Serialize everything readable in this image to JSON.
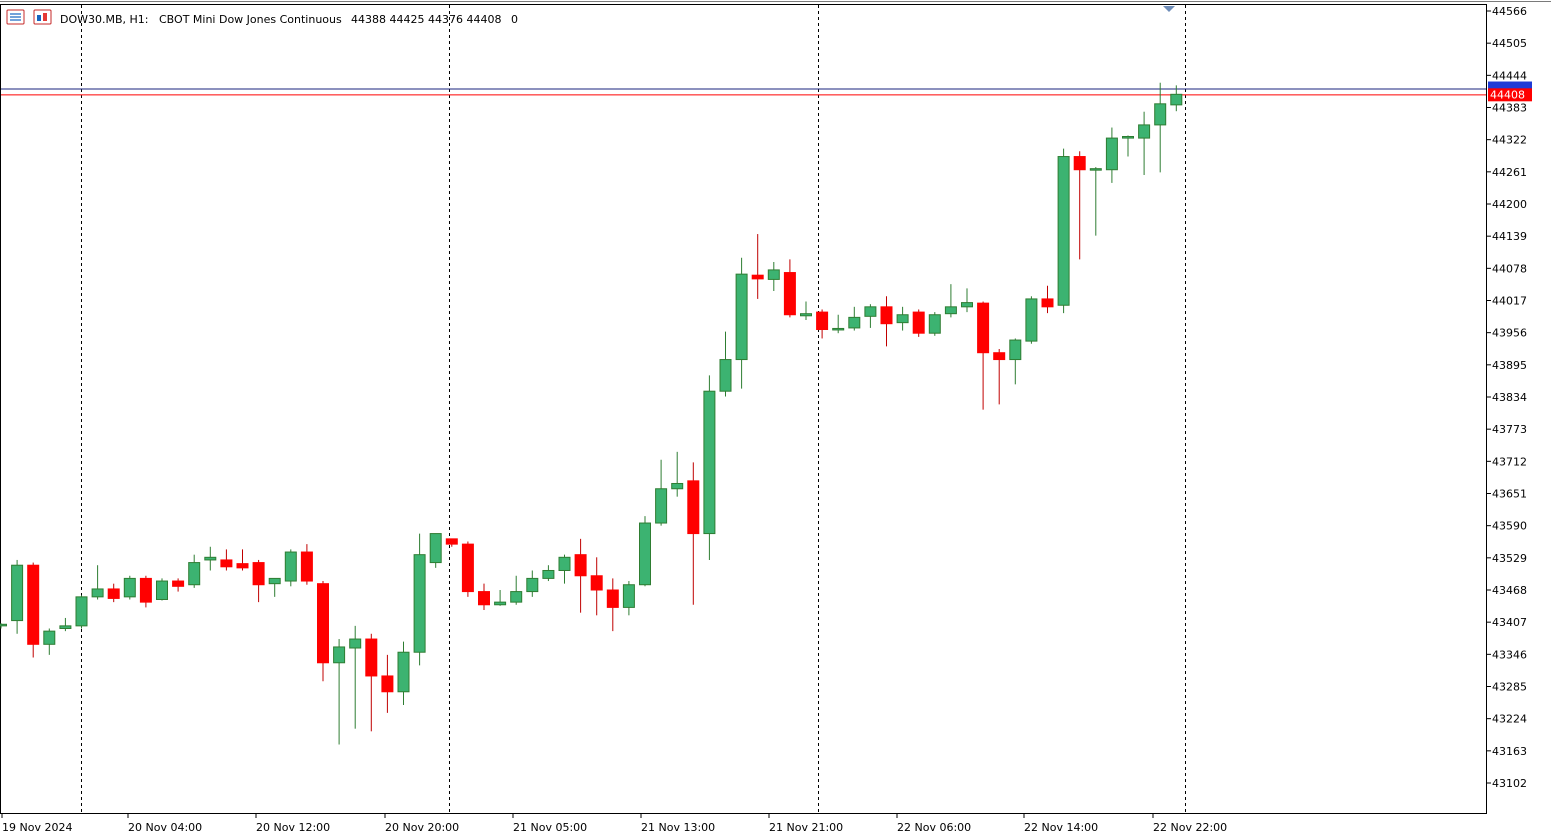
{
  "header": {
    "symbol": "DOW30.MB, H1:",
    "description": "CBOT Mini Dow Jones Continuous",
    "ohlc": "44388 44425 44376 44408",
    "volume": "0",
    "icons": [
      "chart-menu-icon",
      "chart-properties-icon"
    ]
  },
  "colors": {
    "bull": "#3cb371",
    "bull_border": "#2e7d32",
    "bear": "#ff0000",
    "bear_border": "#c00000",
    "grid": "#000000",
    "bid_line": "#ff0000",
    "ask_line": "#1a237e",
    "ask_label": "#1f3bd6"
  },
  "price_labels": {
    "bid": "44408"
  },
  "chart_data": {
    "type": "candlestick",
    "title": "",
    "ylim": [
      43050,
      44575
    ],
    "yticks": [
      "44566",
      "44505",
      "44444",
      "44383",
      "44322",
      "44261",
      "44200",
      "44139",
      "44078",
      "44017",
      "43956",
      "43895",
      "43834",
      "43773",
      "43712",
      "43651",
      "43590",
      "43529",
      "43468",
      "43407",
      "43346",
      "43285",
      "43224",
      "43163",
      "43102"
    ],
    "xticks": [
      "19 Nov 2024",
      "20 Nov 04:00",
      "20 Nov 12:00",
      "20 Nov 20:00",
      "21 Nov 05:00",
      "21 Nov 13:00",
      "21 Nov 21:00",
      "22 Nov 06:00",
      "22 Nov 14:00",
      "22 Nov 22:00"
    ],
    "grid": "vertical dashed separators",
    "bid": 44408,
    "ask": 44419,
    "candles": [
      {
        "o": 43400,
        "h": 43405,
        "l": 43395,
        "c": 43403
      },
      {
        "o": 43410,
        "h": 43525,
        "l": 43385,
        "c": 43515
      },
      {
        "o": 43515,
        "h": 43520,
        "l": 43340,
        "c": 43365
      },
      {
        "o": 43365,
        "h": 43395,
        "l": 43345,
        "c": 43390
      },
      {
        "o": 43395,
        "h": 43415,
        "l": 43390,
        "c": 43400
      },
      {
        "o": 43400,
        "h": 43458,
        "l": 43395,
        "c": 43455
      },
      {
        "o": 43455,
        "h": 43515,
        "l": 43450,
        "c": 43470
      },
      {
        "o": 43470,
        "h": 43480,
        "l": 43445,
        "c": 43452
      },
      {
        "o": 43455,
        "h": 43495,
        "l": 43450,
        "c": 43490
      },
      {
        "o": 43490,
        "h": 43495,
        "l": 43435,
        "c": 43445
      },
      {
        "o": 43450,
        "h": 43490,
        "l": 43448,
        "c": 43485
      },
      {
        "o": 43485,
        "h": 43490,
        "l": 43465,
        "c": 43475
      },
      {
        "o": 43478,
        "h": 43535,
        "l": 43472,
        "c": 43520
      },
      {
        "o": 43525,
        "h": 43550,
        "l": 43505,
        "c": 43530
      },
      {
        "o": 43525,
        "h": 43545,
        "l": 43505,
        "c": 43512
      },
      {
        "o": 43518,
        "h": 43545,
        "l": 43505,
        "c": 43510
      },
      {
        "o": 43520,
        "h": 43525,
        "l": 43445,
        "c": 43478
      },
      {
        "o": 43480,
        "h": 43490,
        "l": 43455,
        "c": 43490
      },
      {
        "o": 43485,
        "h": 43545,
        "l": 43475,
        "c": 43540
      },
      {
        "o": 43540,
        "h": 43555,
        "l": 43478,
        "c": 43485
      },
      {
        "o": 43480,
        "h": 43485,
        "l": 43295,
        "c": 43330
      },
      {
        "o": 43330,
        "h": 43375,
        "l": 43175,
        "c": 43360
      },
      {
        "o": 43358,
        "h": 43400,
        "l": 43205,
        "c": 43375
      },
      {
        "o": 43375,
        "h": 43385,
        "l": 43200,
        "c": 43305
      },
      {
        "o": 43305,
        "h": 43345,
        "l": 43235,
        "c": 43275
      },
      {
        "o": 43275,
        "h": 43370,
        "l": 43250,
        "c": 43350
      },
      {
        "o": 43350,
        "h": 43575,
        "l": 43325,
        "c": 43535
      },
      {
        "o": 43520,
        "h": 43575,
        "l": 43510,
        "c": 43575
      },
      {
        "o": 43565,
        "h": 43565,
        "l": 43550,
        "c": 43555
      },
      {
        "o": 43555,
        "h": 43560,
        "l": 43455,
        "c": 43465
      },
      {
        "o": 43465,
        "h": 43480,
        "l": 43430,
        "c": 43440
      },
      {
        "o": 43440,
        "h": 43468,
        "l": 43438,
        "c": 43445
      },
      {
        "o": 43445,
        "h": 43495,
        "l": 43440,
        "c": 43465
      },
      {
        "o": 43465,
        "h": 43505,
        "l": 43455,
        "c": 43490
      },
      {
        "o": 43490,
        "h": 43515,
        "l": 43485,
        "c": 43505
      },
      {
        "o": 43505,
        "h": 43535,
        "l": 43480,
        "c": 43530
      },
      {
        "o": 43535,
        "h": 43565,
        "l": 43425,
        "c": 43495
      },
      {
        "o": 43495,
        "h": 43530,
        "l": 43420,
        "c": 43468
      },
      {
        "o": 43468,
        "h": 43490,
        "l": 43390,
        "c": 43435
      },
      {
        "o": 43435,
        "h": 43485,
        "l": 43420,
        "c": 43478
      },
      {
        "o": 43478,
        "h": 43608,
        "l": 43475,
        "c": 43595
      },
      {
        "o": 43595,
        "h": 43715,
        "l": 43590,
        "c": 43660
      },
      {
        "o": 43660,
        "h": 43730,
        "l": 43645,
        "c": 43670
      },
      {
        "o": 43675,
        "h": 43710,
        "l": 43440,
        "c": 43575
      },
      {
        "o": 43575,
        "h": 43875,
        "l": 43525,
        "c": 43845
      },
      {
        "o": 43845,
        "h": 43958,
        "l": 43835,
        "c": 43905
      },
      {
        "o": 43905,
        "h": 44098,
        "l": 43850,
        "c": 44067
      },
      {
        "o": 44065,
        "h": 44143,
        "l": 44020,
        "c": 44058
      },
      {
        "o": 44057,
        "h": 44090,
        "l": 44035,
        "c": 44075
      },
      {
        "o": 44070,
        "h": 44095,
        "l": 43985,
        "c": 43990
      },
      {
        "o": 43988,
        "h": 44015,
        "l": 43980,
        "c": 43992
      },
      {
        "o": 43995,
        "h": 44000,
        "l": 43945,
        "c": 43962
      },
      {
        "o": 43962,
        "h": 43990,
        "l": 43955,
        "c": 43964
      },
      {
        "o": 43965,
        "h": 44005,
        "l": 43960,
        "c": 43985
      },
      {
        "o": 43987,
        "h": 44010,
        "l": 43965,
        "c": 44005
      },
      {
        "o": 44005,
        "h": 44025,
        "l": 43930,
        "c": 43973
      },
      {
        "o": 43975,
        "h": 44005,
        "l": 43960,
        "c": 43990
      },
      {
        "o": 43995,
        "h": 44000,
        "l": 43948,
        "c": 43955
      },
      {
        "o": 43955,
        "h": 43995,
        "l": 43950,
        "c": 43990
      },
      {
        "o": 43992,
        "h": 44048,
        "l": 43985,
        "c": 44005
      },
      {
        "o": 44005,
        "h": 44040,
        "l": 43995,
        "c": 44013
      },
      {
        "o": 44012,
        "h": 44015,
        "l": 43810,
        "c": 43918
      },
      {
        "o": 43918,
        "h": 43925,
        "l": 43820,
        "c": 43905
      },
      {
        "o": 43905,
        "h": 43945,
        "l": 43858,
        "c": 43942
      },
      {
        "o": 43940,
        "h": 44025,
        "l": 43935,
        "c": 44020
      },
      {
        "o": 44020,
        "h": 44045,
        "l": 43993,
        "c": 44005
      },
      {
        "o": 44008,
        "h": 44305,
        "l": 43993,
        "c": 44290
      },
      {
        "o": 44290,
        "h": 44300,
        "l": 44095,
        "c": 44265
      },
      {
        "o": 44265,
        "h": 44270,
        "l": 44140,
        "c": 44267
      },
      {
        "o": 44265,
        "h": 44345,
        "l": 44240,
        "c": 44325
      },
      {
        "o": 44325,
        "h": 44330,
        "l": 44290,
        "c": 44328
      },
      {
        "o": 44325,
        "h": 44375,
        "l": 44255,
        "c": 44350
      },
      {
        "o": 44350,
        "h": 44430,
        "l": 44260,
        "c": 44390
      },
      {
        "o": 44388,
        "h": 44425,
        "l": 44376,
        "c": 44408
      }
    ]
  }
}
